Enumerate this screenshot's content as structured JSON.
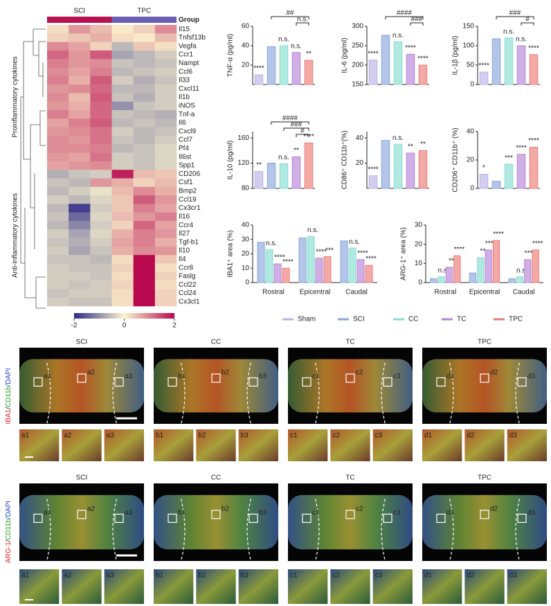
{
  "chart_data": [
    {
      "type": "heatmap",
      "groups": [
        {
          "name": "SCI",
          "color": "#b5124f"
        },
        {
          "name": "TPC",
          "color": "#6b5fb3"
        }
      ],
      "group_label": "Group",
      "row_groups": [
        "Proinflammatory cytokines",
        "Anti-inflammatory  cytokines"
      ],
      "colormap": [
        "#2e2a86",
        "#fbf6cf",
        "#b8084e"
      ],
      "clim": [
        -2,
        2
      ],
      "cticks": [
        -2,
        0,
        2
      ],
      "rows": [
        {
          "label": "Il15",
          "values": [
            0.2,
            0.8,
            0.5,
            0.1,
            0.3,
            0.9
          ]
        },
        {
          "label": "Tnfsf13b",
          "values": [
            0.3,
            0.4,
            0.6,
            0.2,
            0.1,
            0.5
          ]
        },
        {
          "label": "Vegfa",
          "values": [
            0.9,
            0.7,
            0.3,
            -0.6,
            0.4,
            0.2
          ]
        },
        {
          "label": "Ccr1",
          "values": [
            1.2,
            0.8,
            1.3,
            -0.8,
            -0.6,
            -0.4
          ]
        },
        {
          "label": "Nampt",
          "values": [
            1.0,
            0.8,
            0.9,
            -0.5,
            -0.6,
            -0.5
          ]
        },
        {
          "label": "Ccl6",
          "values": [
            0.9,
            0.7,
            1.0,
            -0.6,
            -0.5,
            -0.4
          ]
        },
        {
          "label": "Il33",
          "values": [
            1.0,
            0.6,
            1.3,
            -0.4,
            -0.7,
            -0.5
          ]
        },
        {
          "label": "Cxcl11",
          "values": [
            0.8,
            0.9,
            1.2,
            -0.6,
            -0.6,
            -0.4
          ]
        },
        {
          "label": "Il1b",
          "values": [
            0.9,
            0.5,
            1.3,
            -0.5,
            -0.7,
            -0.4
          ]
        },
        {
          "label": "iNOS",
          "values": [
            0.8,
            0.6,
            1.2,
            -1.0,
            -0.5,
            -0.4
          ]
        },
        {
          "label": "Tnf-a",
          "values": [
            1.0,
            0.7,
            1.2,
            -0.5,
            -0.6,
            -0.7
          ]
        },
        {
          "label": "Il6",
          "values": [
            0.7,
            1.0,
            1.3,
            -0.6,
            -0.5,
            -0.6
          ]
        },
        {
          "label": "Cxcl9",
          "values": [
            0.8,
            0.9,
            1.1,
            -0.4,
            -0.6,
            -0.5
          ]
        },
        {
          "label": "Ccl7",
          "values": [
            0.9,
            0.8,
            1.1,
            -0.5,
            -0.6,
            -0.4
          ]
        },
        {
          "label": "Pf4",
          "values": [
            0.9,
            0.9,
            1.0,
            -0.6,
            -0.5,
            -0.3
          ]
        },
        {
          "label": "Il6st",
          "values": [
            0.8,
            0.7,
            1.1,
            -0.4,
            -0.5,
            -0.3
          ]
        },
        {
          "label": "Spp1",
          "values": [
            0.7,
            0.8,
            0.9,
            -0.4,
            -0.5,
            -0.3
          ]
        },
        {
          "label": "CD206",
          "values": [
            -0.7,
            -0.5,
            -0.4,
            1.8,
            0.5,
            0.4
          ]
        },
        {
          "label": "Csf1",
          "values": [
            -0.5,
            -0.6,
            0.8,
            0.6,
            0.3,
            0.5
          ]
        },
        {
          "label": "Bmp2",
          "values": [
            -0.6,
            -0.4,
            -0.2,
            0.5,
            0.9,
            0.6
          ]
        },
        {
          "label": "Ccl19",
          "values": [
            -0.4,
            -0.6,
            -0.3,
            0.4,
            1.3,
            0.8
          ]
        },
        {
          "label": "Cx3cr1",
          "values": [
            -0.6,
            -1.8,
            -0.4,
            0.4,
            1.0,
            0.7
          ]
        },
        {
          "label": "Il16",
          "values": [
            -0.5,
            -1.4,
            -0.3,
            0.5,
            0.8,
            1.0
          ]
        },
        {
          "label": "Ccr4",
          "values": [
            -0.6,
            -1.1,
            -0.4,
            0.3,
            1.2,
            0.7
          ]
        },
        {
          "label": "Il27",
          "values": [
            -0.4,
            -0.8,
            -0.3,
            0.6,
            1.0,
            0.8
          ]
        },
        {
          "label": "Tgf-b1",
          "values": [
            -0.5,
            -0.7,
            -0.4,
            0.7,
            1.0,
            0.6
          ]
        },
        {
          "label": "Il10",
          "values": [
            -0.4,
            -0.8,
            -0.5,
            0.6,
            0.9,
            0.8
          ]
        },
        {
          "label": "Il4",
          "values": [
            -0.5,
            -0.5,
            -0.6,
            0.2,
            2.0,
            0.4
          ]
        },
        {
          "label": "Ccr8",
          "values": [
            -0.4,
            -0.5,
            -0.5,
            0.3,
            2.0,
            0.2
          ]
        },
        {
          "label": "Faslg",
          "values": [
            -0.4,
            -0.4,
            -0.5,
            0.2,
            2.0,
            0.3
          ]
        },
        {
          "label": "Ccl22",
          "values": [
            -0.4,
            -0.5,
            -0.4,
            0.3,
            2.0,
            0.2
          ]
        },
        {
          "label": "Ccl24",
          "values": [
            -0.5,
            -0.4,
            -0.4,
            0.2,
            2.0,
            0.3
          ]
        },
        {
          "label": "Cx3cl1",
          "values": [
            -0.4,
            -0.5,
            -0.5,
            0.2,
            2.0,
            0.3
          ]
        }
      ]
    },
    {
      "type": "bar",
      "ylabel": "TNF-α (pg/ml)",
      "ylim": [
        0,
        60
      ],
      "yticks": [
        20,
        40,
        60
      ],
      "values": [
        10,
        39,
        40,
        33,
        25
      ],
      "annotations": [
        "****",
        null,
        "n.s.",
        "n.s.",
        "**"
      ],
      "brackets": [
        "##",
        "n.s."
      ]
    },
    {
      "type": "bar",
      "ylabel": "IL-6 (pg/ml)",
      "ylim": [
        150,
        300
      ],
      "yticks": [
        150,
        200,
        250,
        300
      ],
      "values": [
        213,
        277,
        260,
        228,
        200
      ],
      "annotations": [
        "****",
        null,
        "n.s.",
        "****",
        "****"
      ],
      "brackets": [
        "####",
        "###"
      ]
    },
    {
      "type": "bar",
      "ylabel": "IL-1β (pg/ml)",
      "ylim": [
        0,
        150
      ],
      "yticks": [
        0,
        50,
        100,
        150
      ],
      "values": [
        32,
        118,
        120,
        100,
        77
      ],
      "annotations": [
        "****",
        null,
        "n.s.",
        "n.s.",
        "****"
      ],
      "brackets": [
        "###",
        "#"
      ]
    },
    {
      "type": "bar",
      "ylabel": "IL-10 (pg/ml)",
      "ylim": [
        80,
        170
      ],
      "yticks": [
        80,
        120,
        160
      ],
      "values": [
        107,
        120,
        119,
        130,
        152
      ],
      "annotations": [
        "**",
        null,
        "n.s.",
        "**",
        "****"
      ],
      "brackets": [
        "####",
        "###",
        "#"
      ]
    },
    {
      "type": "bar",
      "ylabel": "CD86⁺ CD11b⁺(%)",
      "ylim": [
        0,
        45
      ],
      "yticks": [
        20,
        40
      ],
      "values": [
        10,
        38,
        35,
        28,
        30
      ],
      "annotations": [
        "****",
        null,
        "n.s.",
        "**",
        "**"
      ],
      "brackets": []
    },
    {
      "type": "bar",
      "ylabel": "CD206⁺ CD11b⁺ (%)",
      "ylim": [
        0,
        40
      ],
      "yticks": [
        0,
        20,
        40
      ],
      "values": [
        10,
        5,
        17,
        24,
        29
      ],
      "annotations": [
        "*",
        null,
        "***",
        "****",
        "****"
      ],
      "brackets": []
    },
    {
      "type": "grouped",
      "ylabel": "IBA1⁺ area (%)",
      "ylim": [
        0,
        40
      ],
      "yticks": [
        0,
        10,
        20,
        30,
        40
      ],
      "categories": [
        "Rostral",
        "Epicentral",
        "Caudal"
      ],
      "series": [
        {
          "values": [
            28,
            31,
            29
          ],
          "annotations": [
            null,
            null,
            null
          ]
        },
        {
          "values": [
            23,
            32,
            24
          ],
          "annotations": [
            "n.s.",
            "n.s.",
            "n.s."
          ]
        },
        {
          "values": [
            13,
            17,
            16
          ],
          "annotations": [
            "****",
            "****",
            "****"
          ]
        },
        {
          "values": [
            10,
            18,
            12
          ],
          "annotations": [
            "****",
            "***",
            "****"
          ]
        }
      ]
    },
    {
      "type": "grouped",
      "ylabel": "ARG-1⁺ area (%)",
      "ylim": [
        0,
        30
      ],
      "yticks": [
        0,
        10,
        20,
        30
      ],
      "categories": [
        "Rostral",
        "Epicentral",
        "Caudal"
      ],
      "series": [
        {
          "values": [
            2,
            5,
            2
          ],
          "annotations": [
            null,
            null,
            null
          ]
        },
        {
          "values": [
            3,
            13,
            3
          ],
          "annotations": [
            "n.s.",
            "**",
            "n.s."
          ]
        },
        {
          "values": [
            8,
            17,
            12
          ],
          "annotations": [
            "**",
            "****",
            "****"
          ]
        },
        {
          "values": [
            14,
            22,
            17
          ],
          "annotations": [
            "****",
            "****",
            "****"
          ]
        }
      ]
    }
  ],
  "legend": {
    "series": [
      {
        "name": "Sham",
        "color": "#b9b4e6"
      },
      {
        "name": "SCI",
        "color": "#8aa6dc"
      },
      {
        "name": "CC",
        "color": "#86ddd0"
      },
      {
        "name": "TC",
        "color": "#b784d8"
      },
      {
        "name": "TPC",
        "color": "#ec7b76"
      }
    ]
  },
  "images": {
    "rows": [
      {
        "stain": [
          {
            "text": "IBA1",
            "color": "#e0201c"
          },
          {
            "text": "/",
            "color": "#222222"
          },
          {
            "text": "CD11b",
            "color": "#1aa31a"
          },
          {
            "text": "/DAPI",
            "color": "#2a3fcf"
          }
        ],
        "panels": [
          {
            "title": "SCI",
            "labels": [
              "a1",
              "a2",
              "a3"
            ]
          },
          {
            "title": "CC",
            "labels": [
              "b1",
              "b2",
              "b3"
            ]
          },
          {
            "title": "TC",
            "labels": [
              "c1",
              "c2",
              "c3"
            ]
          },
          {
            "title": "TPC",
            "labels": [
              "d1",
              "d2",
              "d3"
            ]
          }
        ]
      },
      {
        "stain": [
          {
            "text": "ARG-1",
            "color": "#e0201c"
          },
          {
            "text": "/",
            "color": "#222222"
          },
          {
            "text": "CD11b",
            "color": "#1aa31a"
          },
          {
            "text": "/DAPI",
            "color": "#2a3fcf"
          }
        ],
        "panels": [
          {
            "title": "SCI",
            "labels": [
              "a1",
              "a2",
              "a3"
            ]
          },
          {
            "title": "CC",
            "labels": [
              "b1",
              "b2",
              "b3"
            ]
          },
          {
            "title": "TC",
            "labels": [
              "c1",
              "c2",
              "c3"
            ]
          },
          {
            "title": "TPC",
            "labels": [
              "d1",
              "d2",
              "d3"
            ]
          }
        ]
      }
    ]
  }
}
